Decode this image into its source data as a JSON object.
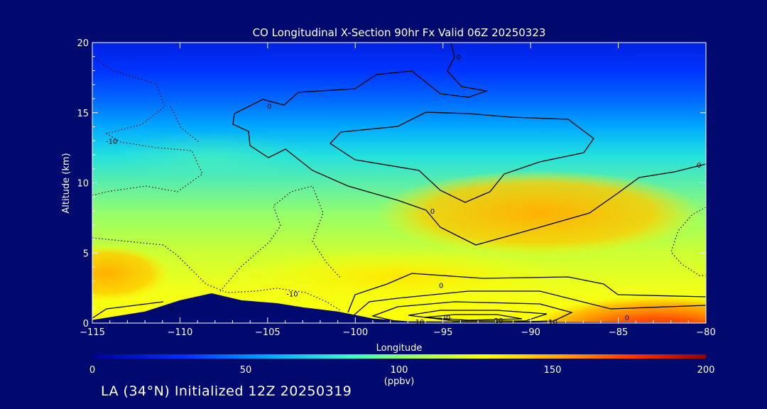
{
  "chart_data": {
    "type": "heatmap",
    "title": "CO Longitudinal X-Section 90hr  Fx Valid 06Z 20250323",
    "xlabel": "Longitude",
    "ylabel": "Altitude (km)",
    "xlim": [
      -115,
      -80
    ],
    "ylim": [
      0,
      20
    ],
    "x_ticks": [
      -115,
      -110,
      -105,
      -100,
      -95,
      -90,
      -85,
      -80
    ],
    "y_ticks": [
      0,
      5,
      10,
      15,
      20
    ],
    "colorbar": {
      "label": "(ppbv)",
      "range": [
        0,
        200
      ],
      "ticks": [
        0,
        50,
        100,
        150,
        200
      ],
      "colors": [
        "#000096",
        "#0030ff",
        "#00b4ff",
        "#33ffcc",
        "#99ff66",
        "#ffff00",
        "#ffaa00",
        "#ff3300",
        "#960000"
      ]
    },
    "background_field": [
      {
        "altitude_km": 20,
        "co_ppbv": 35
      },
      {
        "altitude_km": 17,
        "co_ppbv": 40
      },
      {
        "altitude_km": 15,
        "co_ppbv": 50
      },
      {
        "altitude_km": 13,
        "co_ppbv": 65
      },
      {
        "altitude_km": 11,
        "co_ppbv": 82
      },
      {
        "altitude_km": 9,
        "co_ppbv": 100
      },
      {
        "altitude_km": 7,
        "co_ppbv": 108
      },
      {
        "altitude_km": 5,
        "co_ppbv": 115
      },
      {
        "altitude_km": 3,
        "co_ppbv": 122
      },
      {
        "altitude_km": 0,
        "co_ppbv": 128
      }
    ],
    "contour_labels": [
      {
        "text": "0",
        "lon": -110.5,
        "alt": 1.1
      },
      {
        "text": "-10",
        "lon": -103.6,
        "alt": 2.1
      },
      {
        "text": "-10",
        "lon": -113.9,
        "alt": 13.0
      },
      {
        "text": "0",
        "lon": -104.9,
        "alt": 15.5
      },
      {
        "text": "0",
        "lon": -95.6,
        "alt": 8.0
      },
      {
        "text": "0",
        "lon": -95.1,
        "alt": 2.7
      },
      {
        "text": "-20",
        "lon": -94.9,
        "alt": 0.4
      },
      {
        "text": "-20",
        "lon": -91.9,
        "alt": 0.2
      },
      {
        "text": "-10",
        "lon": -96.4,
        "alt": 0.1
      },
      {
        "text": "-10",
        "lon": -88.8,
        "alt": 0.1
      },
      {
        "text": "0",
        "lon": -84.5,
        "alt": 0.4
      },
      {
        "text": "0",
        "lon": -80.4,
        "alt": 11.3
      },
      {
        "text": "0",
        "lon": -94.1,
        "alt": 19.0
      }
    ],
    "terrain": [
      {
        "lon": -115,
        "alt": 0.2
      },
      {
        "lon": -112,
        "alt": 0.8
      },
      {
        "lon": -110,
        "alt": 1.6
      },
      {
        "lon": -108.2,
        "alt": 2.1
      },
      {
        "lon": -106.5,
        "alt": 1.6
      },
      {
        "lon": -104.5,
        "alt": 1.4
      },
      {
        "lon": -103,
        "alt": 1.1
      },
      {
        "lon": -101,
        "alt": 0.8
      },
      {
        "lon": -99,
        "alt": 0.3
      },
      {
        "lon": -97,
        "alt": 0.1
      },
      {
        "lon": -80,
        "alt": 0.0
      }
    ]
  },
  "footer": {
    "text": "LA (34°N) Initialized 12Z 20250319"
  }
}
